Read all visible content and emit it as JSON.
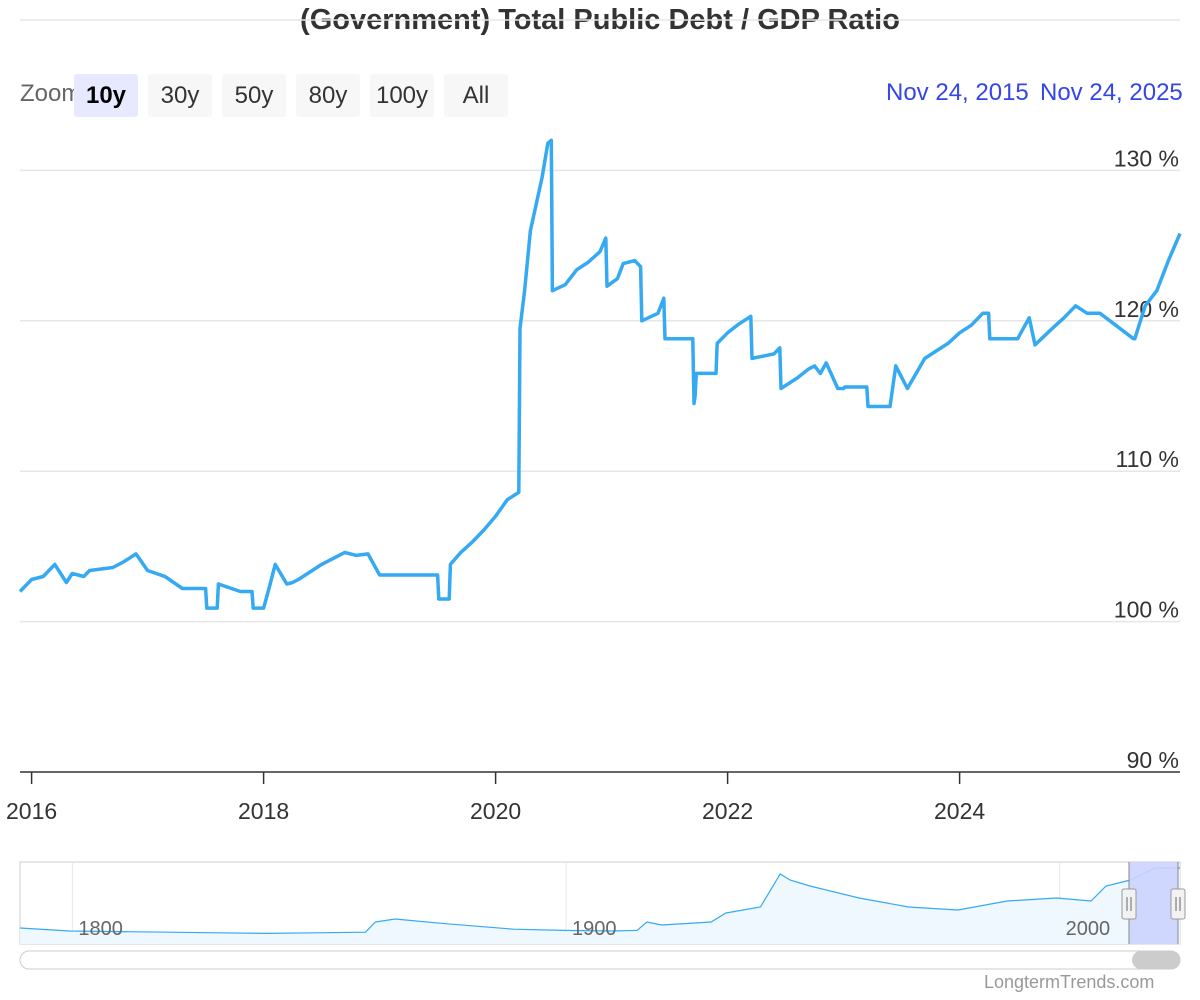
{
  "title": "(Government) Total Public Debt / GDP Ratio",
  "zoom": {
    "label": "Zoom",
    "buttons": [
      "10y",
      "30y",
      "50y",
      "80y",
      "100y",
      "All"
    ],
    "selected": "10y"
  },
  "range": {
    "from": "Nov 24, 2015",
    "to": "Nov 24, 2025"
  },
  "colors": {
    "line": "#35a9f2",
    "range_text": "#3446e8",
    "navigator_mask": "#ccd3ff",
    "navigator_fill": "#eef8fe"
  },
  "credit": "LongtermTrends.com",
  "chart_data": {
    "type": "line",
    "title": "(Government) Total Public Debt / GDP Ratio",
    "xlabel": "",
    "ylabel": "",
    "xlim": [
      2015.9,
      2025.9
    ],
    "ylim": [
      90,
      140
    ],
    "x_ticks": [
      "2016",
      "2018",
      "2020",
      "2022",
      "2024"
    ],
    "y_ticks": [
      "90 %",
      "100 %",
      "110 %",
      "120 %",
      "130 %"
    ],
    "grid": true,
    "series": [
      {
        "x": [
          2015.9,
          2016.0,
          2016.1,
          2016.2,
          2016.3,
          2016.35,
          2016.45,
          2016.5,
          2016.7,
          2016.8,
          2016.9,
          2017.0,
          2017.15,
          2017.3,
          2017.31,
          2017.5,
          2017.51,
          2017.55,
          2017.6,
          2017.61,
          2017.8,
          2017.9,
          2017.91,
          2018.0,
          2018.05,
          2018.1,
          2018.2,
          2018.25,
          2018.3,
          2018.4,
          2018.5,
          2018.6,
          2018.7,
          2018.8,
          2018.9,
          2019.0,
          2019.1,
          2019.2,
          2019.21,
          2019.5,
          2019.51,
          2019.6,
          2019.61,
          2019.7,
          2019.8,
          2019.9,
          2020.0,
          2020.1,
          2020.2,
          2020.21,
          2020.25,
          2020.3,
          2020.4,
          2020.45,
          2020.48,
          2020.49,
          2020.6,
          2020.7,
          2020.8,
          2020.9,
          2020.95,
          2020.96,
          2021.05,
          2021.1,
          2021.2,
          2021.25,
          2021.26,
          2021.4,
          2021.45,
          2021.46,
          2021.6,
          2021.7,
          2021.71,
          2021.72,
          2021.73,
          2021.9,
          2021.91,
          2022.0,
          2022.1,
          2022.2,
          2022.21,
          2022.4,
          2022.45,
          2022.46,
          2022.6,
          2022.7,
          2022.75,
          2022.8,
          2022.85,
          2022.95,
          2023.0,
          2023.01,
          2023.2,
          2023.21,
          2023.4,
          2023.45,
          2023.55,
          2023.7,
          2023.9,
          2024.0,
          2024.1,
          2024.2,
          2024.25,
          2024.26,
          2024.5,
          2024.6,
          2024.65,
          2024.8,
          2024.9,
          2025.0,
          2025.1,
          2025.2,
          2025.21,
          2025.5,
          2025.51,
          2025.6,
          2025.7,
          2025.8,
          2025.9
        ],
        "y": [
          102.0,
          102.8,
          103.0,
          103.8,
          102.6,
          103.2,
          103.0,
          103.4,
          103.6,
          104.0,
          104.5,
          103.4,
          103.0,
          102.2,
          102.2,
          102.2,
          100.9,
          100.9,
          100.9,
          102.5,
          102.0,
          102.0,
          100.9,
          100.9,
          102.3,
          103.8,
          102.5,
          102.6,
          102.8,
          103.3,
          103.8,
          104.2,
          104.6,
          104.4,
          104.5,
          103.1,
          103.1,
          103.1,
          103.1,
          103.1,
          101.5,
          101.5,
          103.8,
          104.6,
          105.3,
          106.1,
          107.0,
          108.1,
          108.6,
          119.5,
          122.0,
          126.0,
          129.5,
          131.8,
          132.0,
          122.0,
          122.4,
          123.4,
          123.9,
          124.6,
          125.5,
          122.3,
          122.8,
          123.8,
          124.0,
          123.6,
          120.0,
          120.5,
          121.5,
          118.8,
          118.8,
          118.8,
          114.5,
          115.0,
          116.5,
          116.5,
          118.5,
          119.2,
          119.8,
          120.3,
          117.5,
          117.8,
          118.2,
          115.5,
          116.2,
          116.8,
          117.0,
          116.5,
          117.2,
          115.5,
          115.5,
          115.6,
          115.6,
          114.3,
          114.3,
          117.0,
          115.5,
          117.5,
          118.5,
          119.2,
          119.7,
          120.5,
          120.5,
          118.8,
          118.8,
          120.2,
          118.4,
          119.5,
          120.2,
          121.0,
          120.5,
          120.5,
          120.5,
          118.8,
          118.8,
          121.0,
          122.0,
          124.0,
          125.8
        ]
      }
    ]
  },
  "navigator": {
    "x_labels": [
      "1800",
      "1900",
      "2000"
    ],
    "xlim": [
      1790,
      2025
    ],
    "x": [
      1790,
      1800,
      1810,
      1820,
      1830,
      1840,
      1850,
      1860,
      1862,
      1866,
      1875,
      1890,
      1900,
      1910,
      1915,
      1917,
      1920,
      1930,
      1933,
      1940,
      1944,
      1946,
      1950,
      1960,
      1970,
      1980,
      1990,
      2000,
      2007,
      2010,
      2015,
      2020,
      2025
    ],
    "y": [
      0.1,
      0.05,
      0.04,
      0.03,
      0.02,
      0.01,
      0.02,
      0.03,
      0.2,
      0.25,
      0.18,
      0.08,
      0.06,
      0.05,
      0.06,
      0.2,
      0.15,
      0.2,
      0.35,
      0.45,
      1.0,
      0.9,
      0.8,
      0.6,
      0.45,
      0.4,
      0.55,
      0.6,
      0.55,
      0.8,
      0.9,
      1.1,
      1.1
    ]
  }
}
